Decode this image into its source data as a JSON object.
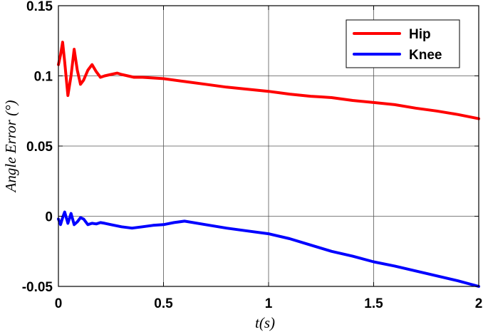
{
  "chart_data": {
    "type": "line",
    "xlabel": "t(s)",
    "ylabel": "Angle Error (°)",
    "xlim": [
      0,
      2
    ],
    "ylim": [
      -0.05,
      0.15
    ],
    "x_ticks": [
      0,
      0.5,
      1,
      1.5,
      2
    ],
    "x_tick_labels": [
      "0",
      "0.5",
      "1",
      "1.5",
      "2"
    ],
    "y_ticks": [
      -0.05,
      0,
      0.05,
      0.1,
      0.15
    ],
    "y_tick_labels": [
      "-0.05",
      "0",
      "0.05",
      "0.1",
      "0.15"
    ],
    "grid": true,
    "legend_position": "top-right",
    "series": [
      {
        "name": "Hip",
        "color": "#ff0000",
        "x": [
          0,
          0.01,
          0.02,
          0.03,
          0.045,
          0.06,
          0.075,
          0.09,
          0.105,
          0.12,
          0.14,
          0.16,
          0.18,
          0.2,
          0.22,
          0.25,
          0.28,
          0.3,
          0.33,
          0.36,
          0.4,
          0.5,
          0.6,
          0.7,
          0.8,
          0.9,
          1.0,
          1.1,
          1.2,
          1.25,
          1.3,
          1.4,
          1.5,
          1.6,
          1.7,
          1.8,
          1.9,
          2.0
        ],
        "y": [
          0.108,
          0.115,
          0.124,
          0.11,
          0.086,
          0.1,
          0.119,
          0.104,
          0.094,
          0.097,
          0.104,
          0.108,
          0.103,
          0.099,
          0.1,
          0.101,
          0.102,
          0.101,
          0.1,
          0.099,
          0.099,
          0.098,
          0.096,
          0.094,
          0.092,
          0.0905,
          0.089,
          0.087,
          0.0855,
          0.085,
          0.0845,
          0.0825,
          0.081,
          0.0795,
          0.077,
          0.075,
          0.0725,
          0.0695
        ]
      },
      {
        "name": "Knee",
        "color": "#0000ff",
        "x": [
          0,
          0.01,
          0.02,
          0.03,
          0.045,
          0.06,
          0.075,
          0.09,
          0.105,
          0.12,
          0.14,
          0.16,
          0.18,
          0.2,
          0.22,
          0.25,
          0.3,
          0.35,
          0.4,
          0.45,
          0.5,
          0.55,
          0.6,
          0.7,
          0.8,
          0.9,
          1.0,
          1.1,
          1.2,
          1.3,
          1.4,
          1.5,
          1.6,
          1.7,
          1.8,
          1.9,
          2.0
        ],
        "y": [
          -0.002,
          -0.006,
          -0.001,
          0.003,
          -0.005,
          0.002,
          -0.006,
          -0.004,
          -0.001,
          -0.002,
          -0.006,
          -0.005,
          -0.0055,
          -0.0045,
          -0.005,
          -0.006,
          -0.0075,
          -0.0085,
          -0.0075,
          -0.0065,
          -0.006,
          -0.0045,
          -0.0035,
          -0.006,
          -0.0085,
          -0.0105,
          -0.0125,
          -0.016,
          -0.0205,
          -0.025,
          -0.0285,
          -0.0325,
          -0.0355,
          -0.039,
          -0.0425,
          -0.046,
          -0.05
        ]
      }
    ]
  }
}
